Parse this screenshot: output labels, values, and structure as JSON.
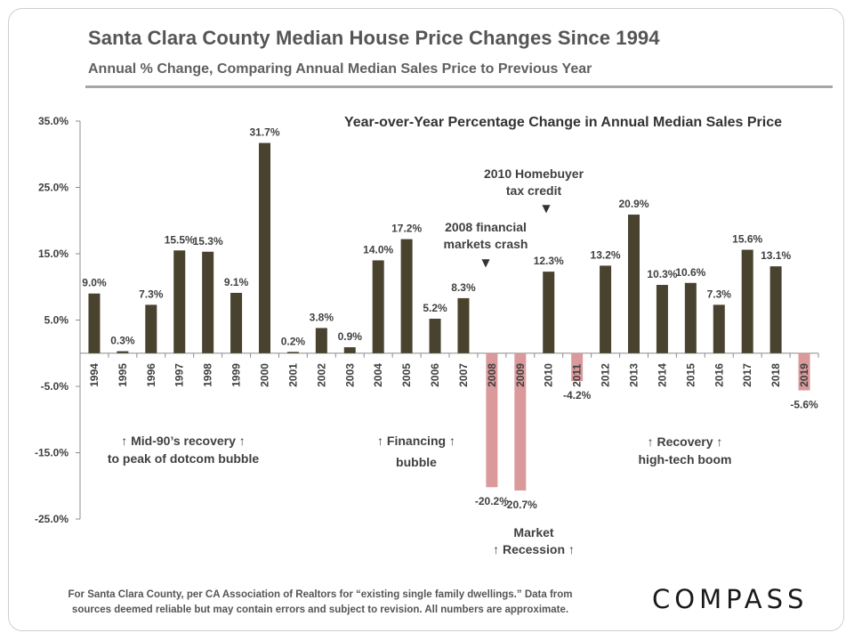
{
  "header": {
    "title": "Santa Clara County Median House Price Changes Since 1994",
    "subtitle": "Annual % Change, Comparing Annual Median Sales Price to Previous Year"
  },
  "footer": {
    "line1": "For Santa Clara County, per CA Association of Realtors for “existing single family dwellings.” Data from",
    "line2": "sources deemed reliable but may contain errors and subject to revision. All numbers are approximate."
  },
  "brand": {
    "logo_text": "COMPASS"
  },
  "chart_data": {
    "type": "bar",
    "title": "Year-over-Year Percentage Change in Annual Median Sales Price",
    "xlabel": "",
    "ylabel": "",
    "ylim": [
      -25,
      35
    ],
    "yticks": [
      35,
      25,
      15,
      5,
      -5,
      -15,
      -25
    ],
    "ytick_labels": [
      "35.0%",
      "25.0%",
      "15.0%",
      "5.0%",
      "-5.0%",
      "-15.0%",
      "-25.0%"
    ],
    "grid": false,
    "categories": [
      "1994",
      "1995",
      "1996",
      "1997",
      "1998",
      "1999",
      "2000",
      "2001",
      "2002",
      "2003",
      "2004",
      "2005",
      "2006",
      "2007",
      "2008",
      "2009",
      "2010",
      "2011",
      "2012",
      "2013",
      "2014",
      "2015",
      "2016",
      "2017",
      "2018",
      "2019"
    ],
    "values": [
      9.0,
      0.3,
      7.3,
      15.5,
      15.3,
      9.1,
      31.7,
      0.2,
      3.8,
      0.9,
      14.0,
      17.2,
      5.2,
      8.3,
      -20.2,
      -20.7,
      12.3,
      -4.2,
      13.2,
      20.9,
      10.3,
      10.6,
      7.3,
      15.6,
      13.1,
      -5.6
    ],
    "data_labels": [
      "9.0%",
      "0.3%",
      "7.3%",
      "15.5%",
      "15.3%",
      "9.1%",
      "31.7%",
      "0.2%",
      "3.8%",
      "0.9%",
      "14.0%",
      "17.2%",
      "5.2%",
      "8.3%",
      "-20.2%",
      "-20.7%",
      "12.3%",
      "-4.2%",
      "13.2%",
      "20.9%",
      "10.3%",
      "10.6%",
      "7.3%",
      "15.6%",
      "13.1%",
      "-5.6%"
    ],
    "colors": {
      "positive": "#48422f",
      "negative": "#da9a9c",
      "axis": "#8c8c8c",
      "text": "#404040"
    },
    "annotations": [
      {
        "id": "mid90s",
        "lines": [
          "↑  Mid-90’s recovery ↑",
          "to peak of dotcom bubble"
        ]
      },
      {
        "id": "financing",
        "lines": [
          "↑  Financing ↑",
          "bubble"
        ]
      },
      {
        "id": "crash2008",
        "lines": [
          "2008 financial",
          "markets crash"
        ],
        "marker": "▼"
      },
      {
        "id": "credit2010",
        "lines": [
          "2010 Homebuyer",
          "tax credit"
        ],
        "marker": "▼"
      },
      {
        "id": "recovery",
        "lines": [
          "↑          Recovery          ↑",
          "high-tech boom"
        ]
      },
      {
        "id": "recession",
        "lines": [
          "Market",
          "↑      Recession ↑"
        ]
      }
    ]
  }
}
